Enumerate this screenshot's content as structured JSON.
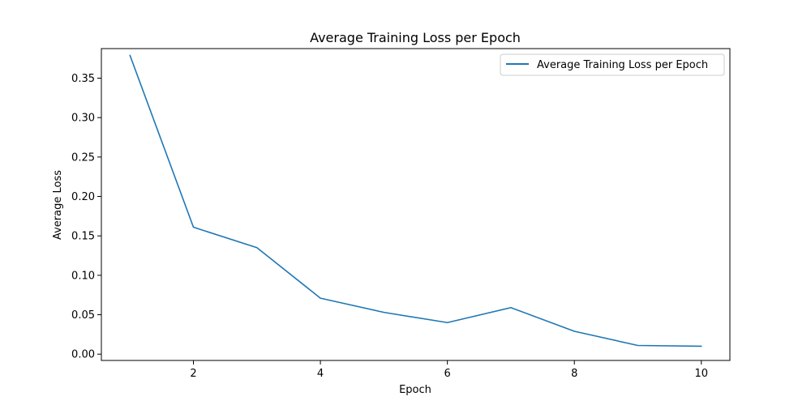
{
  "chart_data": {
    "type": "line",
    "title": "Average Training Loss per Epoch",
    "xlabel": "Epoch",
    "ylabel": "Average Loss",
    "xlim": [
      0.55,
      10.45
    ],
    "ylim": [
      -0.008,
      0.3875
    ],
    "xticks": [
      2,
      4,
      6,
      8,
      10
    ],
    "xtick_labels": [
      "2",
      "4",
      "6",
      "8",
      "10"
    ],
    "yticks": [
      0.0,
      0.05,
      0.1,
      0.15,
      0.2,
      0.25,
      0.3,
      0.35
    ],
    "ytick_labels": [
      "0.00",
      "0.05",
      "0.10",
      "0.15",
      "0.20",
      "0.25",
      "0.30",
      "0.35"
    ],
    "grid": false,
    "legend_position": "top-right",
    "series": [
      {
        "name": "Average Training Loss per Epoch",
        "color": "#1f77b4",
        "x": [
          1,
          2,
          3,
          4,
          5,
          6,
          7,
          8,
          9,
          10
        ],
        "y": [
          0.379,
          0.161,
          0.135,
          0.071,
          0.053,
          0.04,
          0.059,
          0.029,
          0.011,
          0.01
        ]
      }
    ]
  }
}
